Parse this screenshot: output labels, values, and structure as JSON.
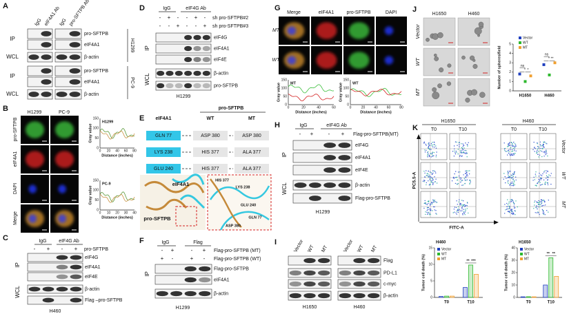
{
  "A": {
    "label": "A",
    "cols": [
      "IgG",
      "eIF4A1 Ab",
      "IgG",
      "pro-SFTPB Ab"
    ],
    "groups": [
      "IP",
      "WCL",
      "IP",
      "WCL"
    ],
    "bands": [
      "pro-SFTPB",
      "eIF4A1",
      "β-actin",
      "pro-SFTPB",
      "eIF4A1",
      "β-actin"
    ],
    "cells": [
      "H1299",
      "PC-9"
    ]
  },
  "B": {
    "label": "B",
    "cells": [
      "H1299",
      "PC-9"
    ],
    "rows": [
      "pro-SFTPB",
      "eIF4A1",
      "DAPI",
      "Merge"
    ],
    "plots": [
      {
        "label": "H1299",
        "y_label": "Gray value",
        "x_label": "Distance (inches)",
        "xticks": [
          "0",
          "20",
          "40",
          "60",
          "80"
        ],
        "yticks": [
          "0",
          "50",
          "100",
          "150"
        ]
      },
      {
        "label": "PC-9",
        "y_label": "Gray value",
        "x_label": "Distance (inches)",
        "xticks": [
          "0",
          "10",
          "20",
          "30",
          "40"
        ],
        "yticks": [
          "0",
          "50",
          "100",
          "150"
        ]
      }
    ]
  },
  "C": {
    "label": "C",
    "cols": [
      "IgG",
      "eIF4G Ab"
    ],
    "treatment": "pro-SFTPB",
    "signs": [
      "-",
      "+",
      "-",
      "+"
    ],
    "groups": [
      "IP",
      "WCL"
    ],
    "bands": [
      "eIF4G",
      "eIF4A1",
      "eIF4E",
      "β-actin",
      "Flag –pro-SFTPB"
    ],
    "cell": "H460"
  },
  "D": {
    "label": "D",
    "cols": [
      "IgG",
      "eIF4G Ab"
    ],
    "treatments": [
      "sh pro-SFTPB#2",
      "sh pro-SFTPB#3"
    ],
    "signs": [
      [
        "-",
        "+",
        "-",
        "-",
        "+",
        "-"
      ],
      [
        "-",
        "-",
        "+",
        "-",
        "-",
        "+"
      ]
    ],
    "groups": [
      "IP",
      "WCL"
    ],
    "bands": [
      "eIF4G",
      "eIF4A1",
      "eIF4E",
      "β-actin",
      "pro-SFTPB"
    ],
    "cell": "H1299"
  },
  "E": {
    "label": "E",
    "header": "pro-SFTPB",
    "partner": "eIF4A1",
    "cols": [
      "WT",
      "MT"
    ],
    "rows": [
      [
        "GLN 77",
        "ASP 380",
        "ASP 380"
      ],
      [
        "LYS 238",
        "HIS 377",
        "ALA 377"
      ],
      [
        "GLU 240",
        "HIS 377",
        "ALA 377"
      ]
    ],
    "structure": [
      "eIF4A1",
      "pro-SFTPB",
      "HIS 377",
      "LYS 238",
      "GLU 240",
      "GLN 77",
      "ASP 380"
    ]
  },
  "F": {
    "label": "F",
    "cols": [
      "IgG",
      "Flag"
    ],
    "treatments": [
      "Flag-pro-SFTPB (MT)",
      "Flag-pro-SFTPB (WT)"
    ],
    "signs": [
      [
        "-",
        "+",
        "-",
        "+"
      ],
      [
        "+",
        "-",
        "+",
        "-"
      ]
    ],
    "group": "IP",
    "bands": [
      "Flag-pro-SFTPB",
      "eIF4A1",
      "β-actin"
    ],
    "cell": "H1299"
  },
  "G": {
    "label": "G",
    "cols": [
      "Merge",
      "eIF4A1",
      "pro-SFTPB",
      "DAPI"
    ],
    "rows": [
      "MT",
      "WT"
    ],
    "plots": [
      {
        "label": "MT",
        "y_label": "Gray value",
        "x_label": "Distance (inches)",
        "xticks": [
          "0",
          "20",
          "40",
          "60"
        ],
        "yticks": [
          "0",
          "50",
          "100",
          "150"
        ]
      },
      {
        "label": "WT",
        "y_label": "Gray value",
        "x_label": "Distance (inches)",
        "xticks": [
          "0",
          "20",
          "40",
          "60",
          "80"
        ],
        "yticks": [
          "0",
          "50",
          "100",
          "150"
        ]
      }
    ]
  },
  "H": {
    "label": "H",
    "cols": [
      "IgG",
      "eIF4G Ab"
    ],
    "treatment": "Flag-pro-SFTPB(MT)",
    "signs": [
      "-",
      "+",
      "-",
      "+"
    ],
    "groups": [
      "IP",
      "WCL"
    ],
    "bands": [
      "eIF4G",
      "eIF4A1",
      "eIF4E",
      "β-actin",
      "Flag-pro-SFTPB"
    ],
    "cell": "H1299"
  },
  "I": {
    "label": "I",
    "lanes": [
      "Vector",
      "WT",
      "MT",
      "Vector",
      "WT",
      "MT"
    ],
    "bands": [
      "Flag",
      "PD-L1",
      "c-myc",
      "β-actin"
    ],
    "cells": [
      "H1650",
      "H460"
    ]
  },
  "J": {
    "label": "J",
    "cols": [
      "H1650",
      "H460"
    ],
    "rows": [
      "Vector",
      "WT",
      "MT"
    ],
    "chart": {
      "type": "scatter",
      "y_label": "Number of spheres/field",
      "categories": [
        "H1650",
        "H460"
      ],
      "series": [
        {
          "name": "Vector",
          "color": "#1f3fbf",
          "values": [
            1.8,
            2.8
          ]
        },
        {
          "name": "WT",
          "color": "#2db82d",
          "values": [
            1.0,
            1.7
          ]
        },
        {
          "name": "MT",
          "color": "#f0a030",
          "values": [
            1.6,
            3.0
          ]
        }
      ],
      "ylim": [
        0,
        5
      ],
      "yticks": [
        0,
        1,
        2,
        3,
        4,
        5
      ],
      "annotations": [
        [
          "ns",
          "*",
          "*"
        ],
        [
          "ns",
          "*",
          "**"
        ]
      ]
    }
  },
  "K": {
    "label": "K",
    "cells": [
      "H1650",
      "H460"
    ],
    "times": [
      "T0",
      "T10",
      "T0",
      "T10"
    ],
    "rows": [
      "Vector",
      "WT",
      "MT"
    ],
    "y_axis": "PC5.5-A",
    "x_axis": "FITC-A",
    "charts": [
      {
        "type": "bar",
        "title": "H460",
        "y_label": "Tumor cell death (%)",
        "categories": [
          "T0",
          "T10"
        ],
        "series": [
          {
            "name": "Vector",
            "color": "#1f3fbf",
            "values": [
              0.3,
              3
            ]
          },
          {
            "name": "WT",
            "color": "#2db82d",
            "values": [
              0.4,
              9.8
            ]
          },
          {
            "name": "MT",
            "color": "#f0a030",
            "values": [
              0.4,
              7
            ]
          }
        ],
        "ylim": [
          0,
          15
        ],
        "yticks": [
          0,
          5,
          10,
          15
        ],
        "annotations": [
          "**",
          "***"
        ]
      },
      {
        "type": "bar",
        "title": "H1650",
        "y_label": "Tumor cell death (%)",
        "categories": [
          "T0",
          "T10"
        ],
        "series": [
          {
            "name": "Vector",
            "color": "#1f3fbf",
            "values": [
              0.5,
              10
            ]
          },
          {
            "name": "WT",
            "color": "#2db82d",
            "values": [
              0.6,
              32
            ]
          },
          {
            "name": "MT",
            "color": "#f0a030",
            "values": [
              0.5,
              17
            ]
          }
        ],
        "ylim": [
          0,
          40
        ],
        "yticks": [
          0,
          10,
          20,
          30,
          40
        ],
        "annotations": [
          "**",
          "**"
        ]
      }
    ]
  }
}
